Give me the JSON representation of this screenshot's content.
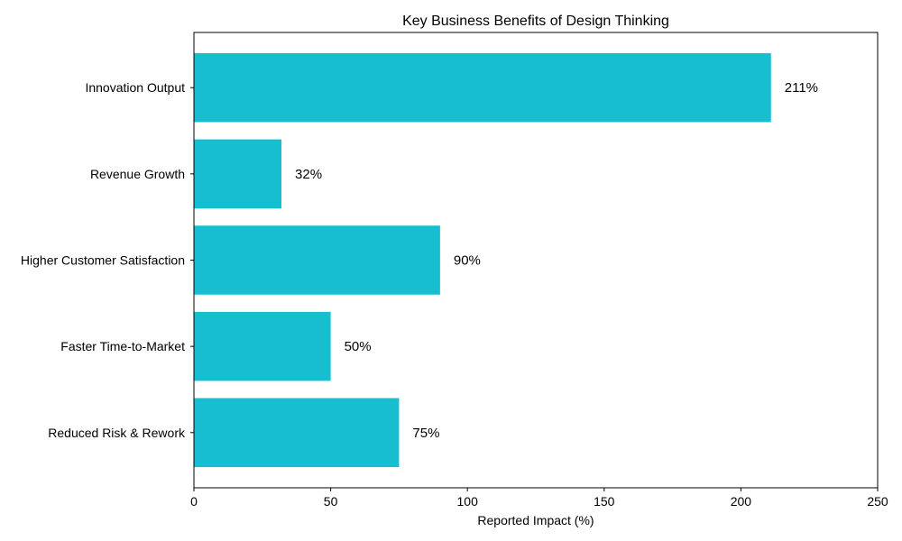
{
  "chart_data": {
    "type": "bar",
    "orientation": "horizontal",
    "title": "Key Business Benefits of Design Thinking",
    "xlabel": "Reported Impact (%)",
    "ylabel": "",
    "categories": [
      "Innovation Output",
      "Revenue Growth",
      "Higher Customer Satisfaction",
      "Faster Time-to-Market",
      "Reduced Risk & Rework"
    ],
    "values": [
      211,
      32,
      90,
      50,
      75
    ],
    "data_labels": [
      "211%",
      "32%",
      "90%",
      "50%",
      "75%"
    ],
    "xlim": [
      0,
      250
    ],
    "xticks": [
      0,
      50,
      100,
      150,
      200,
      250
    ],
    "xtick_labels": [
      "0",
      "50",
      "100",
      "150",
      "200",
      "250"
    ],
    "grid": false,
    "bar_color": "#17becf"
  }
}
